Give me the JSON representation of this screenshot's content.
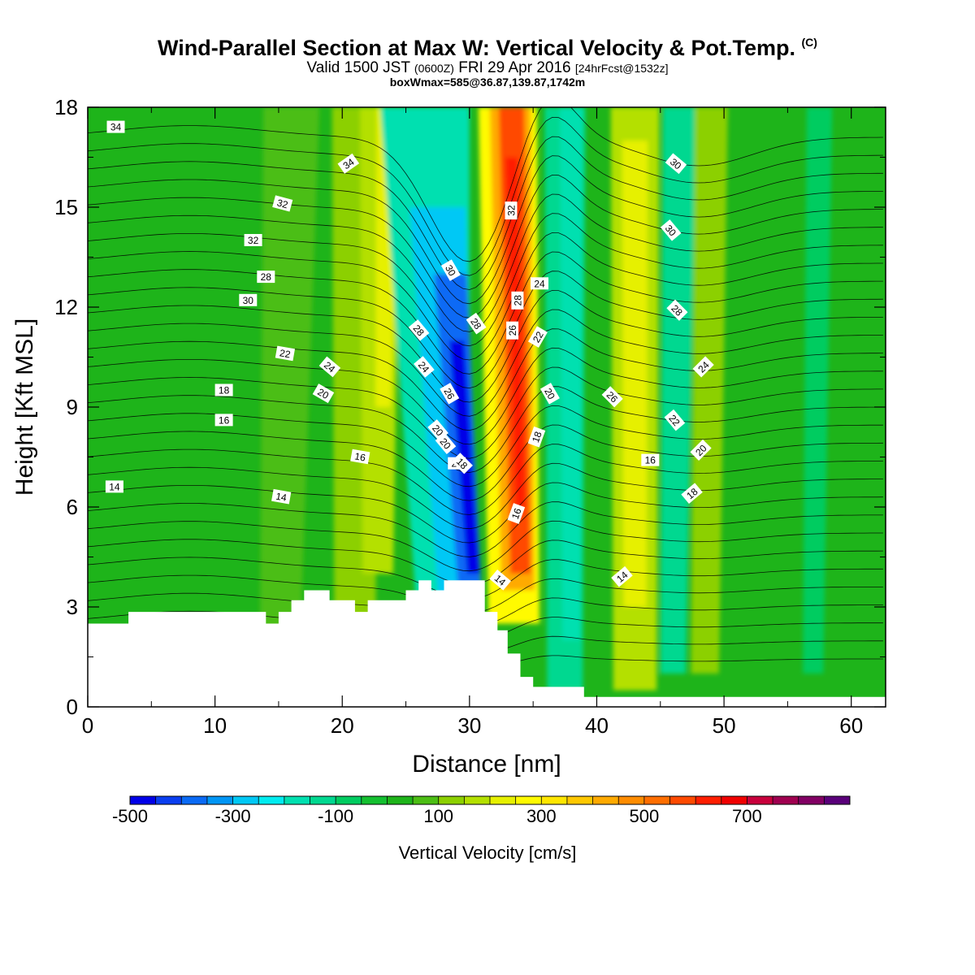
{
  "header": {
    "title": "Wind-Parallel Section at Max W: Vertical Velocity & Pot.Temp.",
    "title_mark": "(C)",
    "valid_prefix": "Valid 1500 JST",
    "valid_utc": "(0600Z)",
    "valid_date": "FRI 29 Apr 2016",
    "forecast": "[24hrFcst@1532z]",
    "boxline": "boxWmax=585@36.87,139.87,1742m"
  },
  "chart_data": {
    "type": "heatmap",
    "xlabel": "Distance [nm]",
    "ylabel": "Height [Kft MSL]",
    "xlim": [
      0,
      62.7
    ],
    "ylim": [
      0,
      18
    ],
    "x_ticks": [
      0,
      10,
      20,
      30,
      40,
      50,
      60
    ],
    "y_ticks": [
      0,
      3,
      6,
      9,
      12,
      15,
      18
    ],
    "x_tick_labels": [
      "0",
      "10",
      "20",
      "30",
      "40",
      "50",
      "60"
    ],
    "y_tick_labels": [
      "0",
      "3",
      "6",
      "9",
      "12",
      "15",
      "18"
    ],
    "colorbar": {
      "title": "Vertical Velocity [cm/s]",
      "tick_labels": [
        "-500",
        "-300",
        "-100",
        "100",
        "300",
        "500",
        "700"
      ],
      "tick_values": [
        -500,
        -300,
        -100,
        100,
        300,
        500,
        700
      ],
      "levels": [
        -500,
        -450,
        -400,
        -350,
        -300,
        -250,
        -200,
        -150,
        -100,
        -50,
        0,
        50,
        100,
        150,
        200,
        250,
        300,
        350,
        400,
        450,
        500,
        550,
        600,
        650,
        700,
        750,
        800,
        850
      ],
      "colors": [
        "#0000e8",
        "#0a3ef0",
        "#0a6af5",
        "#0096f5",
        "#00c8f5",
        "#00ecf0",
        "#00e0b0",
        "#00d890",
        "#00cc60",
        "#14c030",
        "#1eb41a",
        "#4cbe14",
        "#8cd000",
        "#b4e000",
        "#e6f000",
        "#fffa00",
        "#ffe600",
        "#ffc800",
        "#ffaa00",
        "#ff8c00",
        "#ff6e00",
        "#ff4a00",
        "#ff1e00",
        "#f00000",
        "#c8003c",
        "#a00050",
        "#820064",
        "#5a007a"
      ]
    },
    "updraft_max_velocity": 585,
    "terrain_profile": {
      "x": [
        0,
        3.2,
        3.2,
        14,
        14,
        15,
        15,
        16,
        16,
        17,
        17,
        19,
        19,
        21,
        21,
        22,
        22,
        25,
        25,
        26,
        26,
        27,
        27,
        28,
        28,
        31.2,
        31.2,
        32.2,
        32.2,
        33,
        33,
        34,
        34,
        35,
        35,
        39,
        39,
        62.7
      ],
      "height": [
        2.5,
        2.5,
        2.85,
        2.85,
        2.5,
        2.5,
        2.85,
        2.85,
        3.2,
        3.2,
        3.5,
        3.5,
        3.2,
        3.2,
        2.85,
        2.85,
        3.2,
        3.2,
        3.5,
        3.5,
        3.8,
        3.8,
        3.5,
        3.5,
        3.8,
        3.8,
        2.85,
        2.85,
        2.3,
        2.3,
        1.6,
        1.6,
        0.9,
        0.9,
        0.6,
        0.6,
        0.3,
        0.3
      ]
    },
    "potential_temperature_labels": [
      "34",
      "34",
      "32",
      "32",
      "32",
      "30",
      "30",
      "30",
      "30",
      "28",
      "28",
      "28",
      "28",
      "28",
      "26",
      "26",
      "26",
      "24",
      "24",
      "24",
      "24",
      "24",
      "22",
      "22",
      "22",
      "20",
      "20",
      "20",
      "20",
      "20",
      "18",
      "18",
      "18",
      "18",
      "16",
      "16",
      "16",
      "16",
      "14",
      "14",
      "14",
      "14"
    ]
  }
}
